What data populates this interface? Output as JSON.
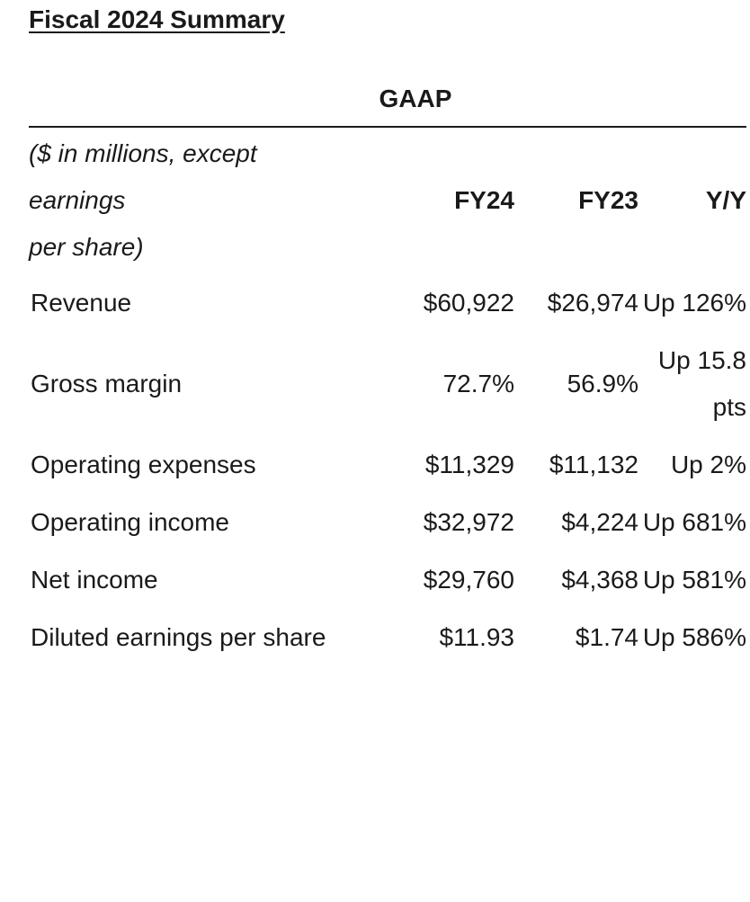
{
  "header": {
    "title": "Fiscal 2024 Summary"
  },
  "table": {
    "group_header": "GAAP",
    "unit_note_lines": [
      "($ in millions, except",
      "earnings",
      "per share)"
    ],
    "columns": [
      "FY24",
      "FY23",
      "Y/Y"
    ],
    "rows": [
      [
        "Revenue",
        "$60,922",
        "$26,974",
        "Up 126%"
      ],
      [
        "Gross margin",
        "72.7%",
        "56.9%",
        "Up 15.8 pts"
      ],
      [
        "Operating expenses",
        "$11,329",
        "$11,132",
        "Up 2%"
      ],
      [
        "Operating income",
        "$32,972",
        "$4,224",
        "Up 681%"
      ],
      [
        "Net income",
        "$29,760",
        "$4,368",
        "Up 581%"
      ],
      [
        "Diluted earnings per share",
        "$11.93",
        "$1.74",
        "Up 586%"
      ]
    ]
  }
}
